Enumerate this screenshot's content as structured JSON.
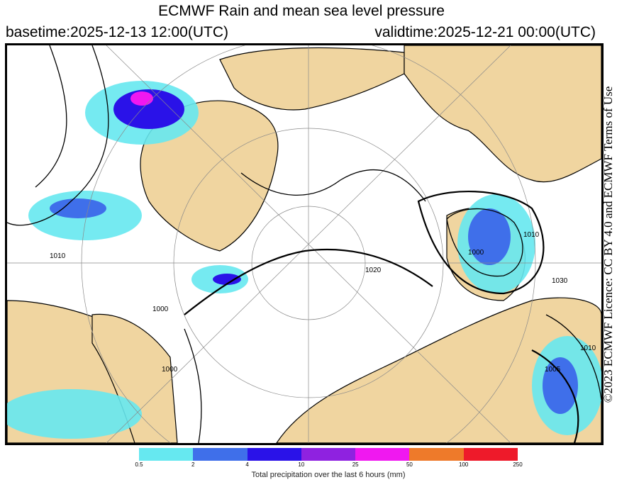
{
  "header": {
    "title": "ECMWF Rain and mean sea level pressure",
    "basetime": "basetime:2025-12-13 12:00(UTC)",
    "validtime": "validtime:2025-12-21 00:00(UTC)"
  },
  "map": {
    "isobar_labels": [
      "1010",
      "1000",
      "1010",
      "1020",
      "1030",
      "1005",
      "1010",
      "1000",
      "1000"
    ],
    "colors": {
      "land": "#f0d5a0",
      "sea": "#ffffff",
      "isobar": "#000000",
      "grid": "#8a8a8a"
    }
  },
  "credit": {
    "text": "©2023 ECMWF Licence: CC BY 4.0 and ECMWF Terms of Use"
  },
  "legend": {
    "caption": "Total precipitation over the last 6 hours (mm)",
    "ticks": [
      "0.5",
      "2",
      "4",
      "10",
      "25",
      "50",
      "100",
      "250"
    ],
    "colors": [
      "#66e8f0",
      "#3f6fea",
      "#2a12e8",
      "#8f22e0",
      "#f018f0",
      "#ee7a2a",
      "#ee1a2a"
    ]
  }
}
